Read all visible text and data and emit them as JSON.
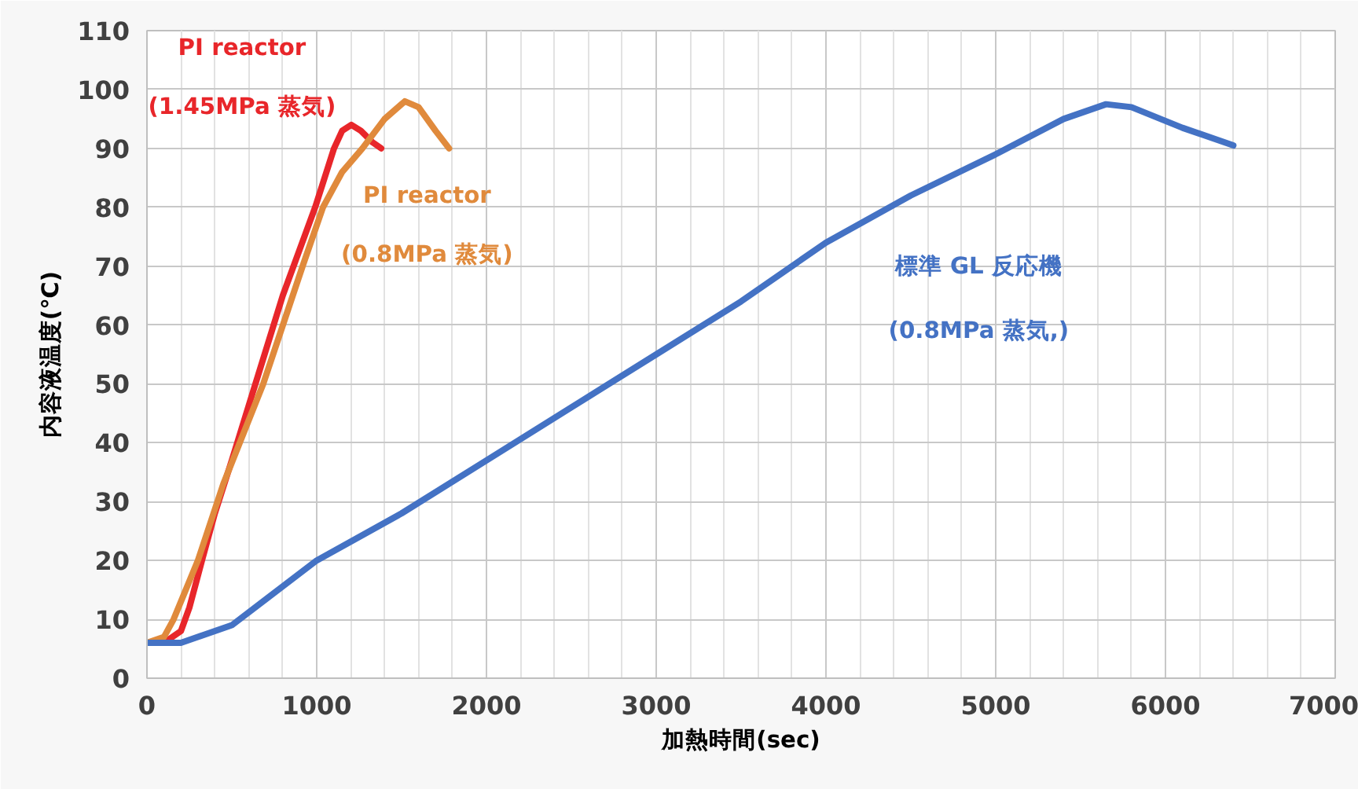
{
  "chart_data": {
    "type": "line",
    "xlabel": "加熱時間(sec)",
    "ylabel": "内容液温度(℃)",
    "xlim": [
      0,
      7000
    ],
    "xticks": [
      0,
      1000,
      2000,
      3000,
      4000,
      5000,
      6000,
      7000
    ],
    "ylim": [
      0,
      110
    ],
    "yticks": [
      0,
      10,
      20,
      30,
      40,
      50,
      60,
      70,
      80,
      90,
      100,
      110
    ],
    "grid": true,
    "marker": "none",
    "line_style": "solid",
    "series": [
      {
        "name": "PI reactor\n(1.45MPa 蒸気)",
        "color": "#e8262a",
        "x": [
          0,
          100,
          200,
          250,
          324,
          400,
          500,
          639,
          800,
          991,
          1102,
          1150,
          1204,
          1260,
          1330,
          1380
        ],
        "values": [
          6,
          6,
          8,
          12,
          20,
          28,
          37,
          50,
          65,
          80,
          90,
          93,
          94,
          93,
          91,
          90
        ]
      },
      {
        "name": "PI reactor\n(0.8MPa 蒸気)",
        "color": "#e08a3c",
        "x": [
          0,
          100,
          157,
          300,
          450,
          685,
          917,
          1037,
          1150,
          1269,
          1400,
          1519,
          1600,
          1700,
          1780
        ],
        "values": [
          6,
          7,
          10,
          20,
          33,
          50,
          70,
          80,
          86,
          90,
          95,
          98,
          97,
          93,
          90
        ]
      },
      {
        "name": "標準 GL 反応機\n(0.8MPa 蒸気,)",
        "color": "#4472c4",
        "x": [
          0,
          200,
          500,
          1000,
          1500,
          2000,
          2500,
          3000,
          3500,
          4000,
          4500,
          5000,
          5400,
          5650,
          5800,
          6100,
          6400
        ],
        "values": [
          6,
          6,
          9,
          20,
          28,
          37,
          46,
          55,
          64,
          74,
          82,
          89,
          95,
          97.5,
          97,
          93.5,
          90.5
        ]
      }
    ]
  }
}
